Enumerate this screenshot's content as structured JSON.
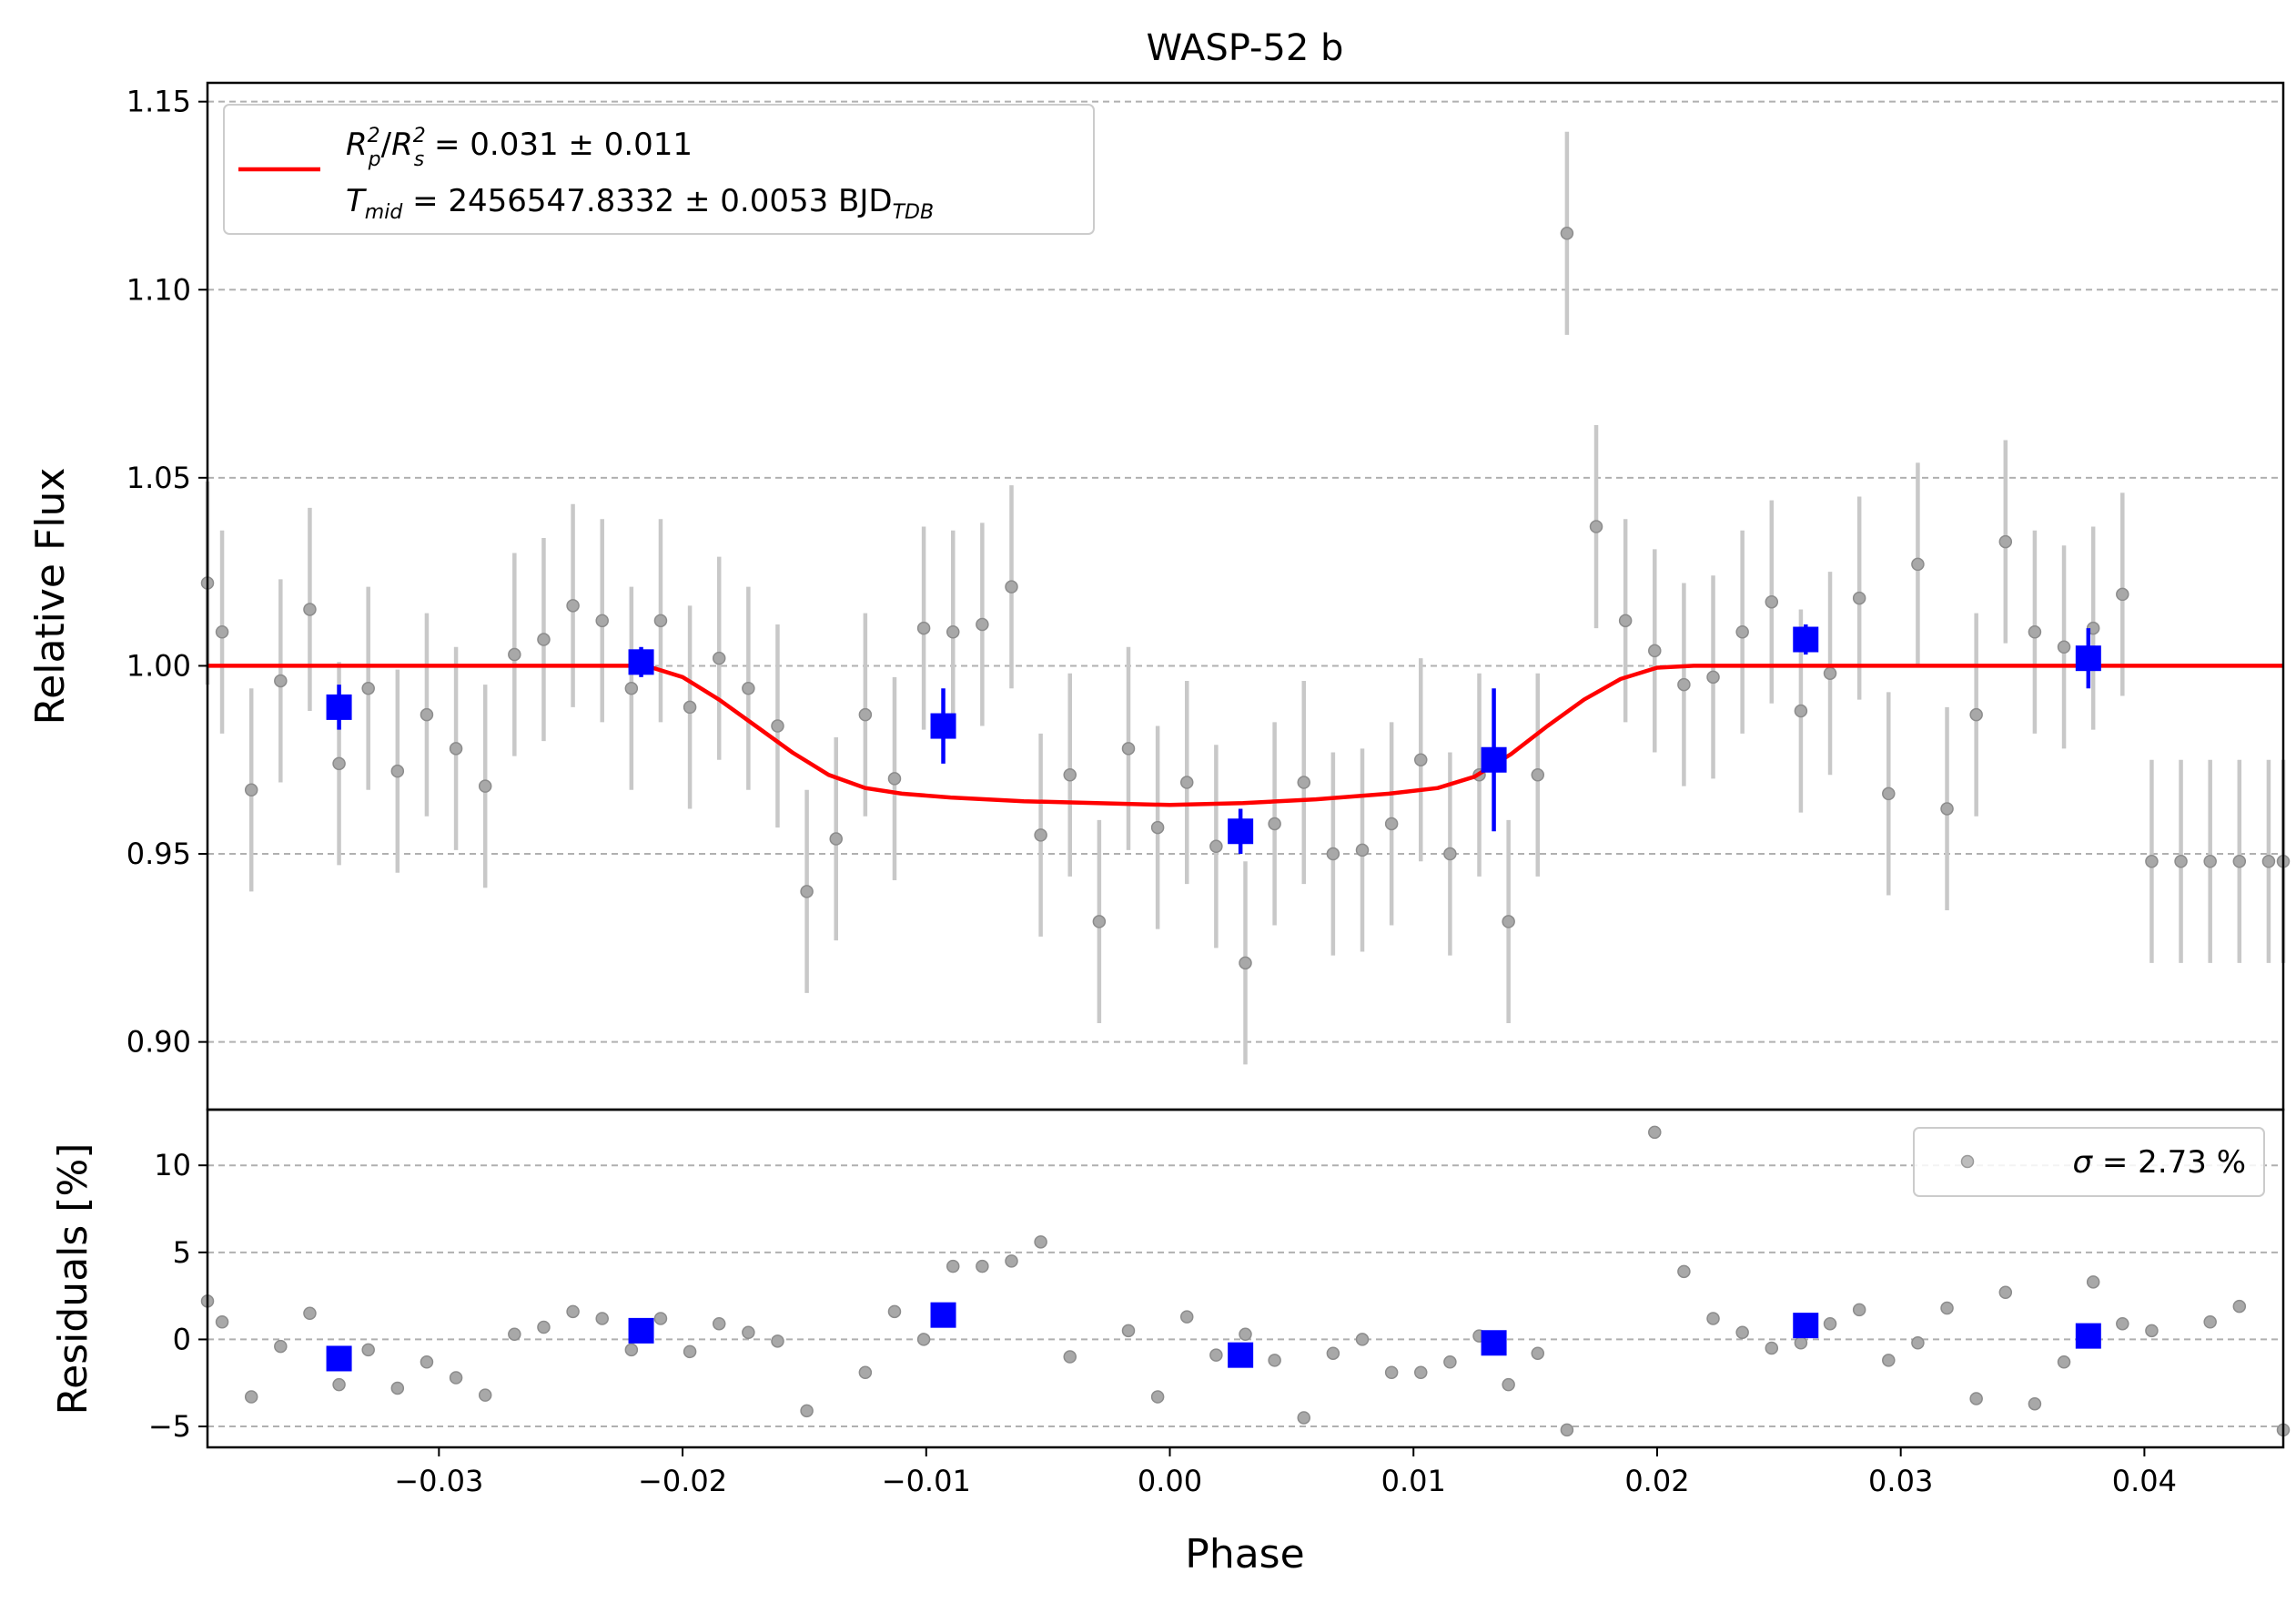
{
  "chart_data": {
    "type": "scatter",
    "title": "WASP-52 b",
    "xlabel": "Phase",
    "xlim": [
      -0.0395,
      0.0457
    ],
    "xticks": [
      -0.03,
      -0.02,
      -0.01,
      0.0,
      0.01,
      0.02,
      0.03,
      0.04
    ],
    "xtick_labels": [
      "−0.03",
      "−0.02",
      "−0.01",
      "0.00",
      "0.01",
      "0.02",
      "0.03",
      "0.04"
    ],
    "grid": "horizontal dashed",
    "top_panel": {
      "ylabel": "Relative Flux",
      "ylim": [
        0.882,
        1.155
      ],
      "yticks": [
        0.9,
        0.95,
        1.0,
        1.05,
        1.1,
        1.15
      ],
      "ytick_labels": [
        "0.90",
        "0.95",
        "1.00",
        "1.05",
        "1.10",
        "1.15"
      ],
      "legend": {
        "placement": "top-left",
        "line1": "R p²/R s² = 0.031 ± 0.011",
        "line2": "T mid = 2456547.8332 ± 0.0053 BJD TDB",
        "r_main": "R",
        "r_sub_p": "p",
        "r_sup": "2",
        "slash": "/",
        "r_sub_s": "s",
        "r_value": " = 0.031 ± 0.011",
        "t_main": "T",
        "t_sub": "mid",
        "t_value": " = 2456547.8332 ± 0.0053 BJD",
        "t_unit_sub": "TDB"
      },
      "data": {
        "name": "data",
        "color": "#808080",
        "x": [
          -0.0395,
          -0.0389,
          -0.0377,
          -0.0365,
          -0.0353,
          -0.0341,
          -0.0329,
          -0.0317,
          -0.0305,
          -0.0293,
          -0.0281,
          -0.0269,
          -0.0257,
          -0.0245,
          -0.0233,
          -0.0221,
          -0.0209,
          -0.0197,
          -0.0185,
          -0.0173,
          -0.0161,
          -0.0149,
          -0.0137,
          -0.0125,
          -0.0113,
          -0.0101,
          -0.0089,
          -0.0077,
          -0.0065,
          -0.0053,
          -0.0041,
          -0.0029,
          -0.0017,
          -0.0005,
          0.0007,
          0.0019,
          0.0031,
          0.0043,
          0.0055,
          0.0067,
          0.0079,
          0.0091,
          0.0103,
          0.0115,
          0.0127,
          0.0139,
          0.0151,
          0.0163,
          0.0175,
          0.0187,
          0.0199,
          0.0211,
          0.0223,
          0.0235,
          0.0247,
          0.0259,
          0.0271,
          0.0283,
          0.0295,
          0.0307,
          0.0319,
          0.0331,
          0.0343,
          0.0355,
          0.0367,
          0.0379,
          0.0391,
          0.0403,
          0.0415,
          0.0427,
          0.0439,
          0.0451,
          0.0457
        ],
        "y": [
          1.022,
          1.009,
          0.967,
          0.996,
          1.015,
          0.974,
          0.994,
          0.972,
          0.987,
          0.978,
          0.968,
          1.003,
          1.007,
          1.016,
          1.012,
          0.994,
          1.012,
          0.989,
          1.002,
          0.994,
          0.984,
          0.94,
          0.954,
          0.987,
          0.97,
          1.01,
          1.009,
          1.011,
          1.021,
          0.955,
          0.971,
          0.932,
          0.978,
          0.957,
          0.969,
          0.952,
          0.921,
          0.958,
          0.969,
          0.95,
          0.951,
          0.958,
          0.975,
          0.95,
          0.971,
          0.932,
          0.971,
          1.115,
          1.037,
          1.012,
          1.004,
          0.995,
          0.997,
          1.009,
          1.017,
          0.988,
          0.998,
          1.018,
          0.966,
          1.027,
          0.962,
          0.987,
          1.033,
          1.009,
          1.005,
          1.01,
          1.019,
          0.948,
          0.948,
          0.948,
          0.948,
          0.948,
          0.948
        ],
        "yerr": 0.027
      },
      "binned": {
        "name": "binned",
        "color": "#0000ff",
        "x": [
          -0.0341,
          -0.0217,
          -0.0093,
          0.0029,
          0.0133,
          0.0261,
          0.0377
        ],
        "y": [
          0.989,
          1.001,
          0.984,
          0.956,
          0.975,
          1.007,
          1.002
        ],
        "yerr": [
          0.006,
          0.004,
          0.01,
          0.006,
          0.019,
          0.004,
          0.008
        ]
      },
      "model": {
        "name": "model",
        "color": "#ff0000",
        "x": [
          -0.0395,
          -0.0215,
          -0.02,
          -0.0185,
          -0.017,
          -0.0155,
          -0.014,
          -0.0125,
          -0.011,
          -0.009,
          -0.006,
          -0.003,
          0.0,
          0.003,
          0.006,
          0.009,
          0.011,
          0.0125,
          0.014,
          0.0155,
          0.017,
          0.0185,
          0.02,
          0.0215,
          0.0457
        ],
        "y": [
          1.0,
          1.0,
          0.997,
          0.991,
          0.984,
          0.977,
          0.971,
          0.9675,
          0.966,
          0.965,
          0.964,
          0.9635,
          0.963,
          0.9635,
          0.9645,
          0.966,
          0.9675,
          0.9705,
          0.9765,
          0.984,
          0.991,
          0.9965,
          0.9995,
          1.0,
          1.0
        ]
      }
    },
    "bottom_panel": {
      "ylabel": "Residuals [%]",
      "ylim": [
        -6.2,
        13.2
      ],
      "yticks": [
        -5,
        0,
        5,
        10
      ],
      "ytick_labels": [
        "−5",
        "0",
        "5",
        "10"
      ],
      "legend": {
        "placement": "top-right",
        "sigma_symbol": "σ",
        "sigma_text": " = 2.73 %"
      },
      "data": {
        "x": [
          -0.0395,
          -0.0389,
          -0.0377,
          -0.0365,
          -0.0353,
          -0.0341,
          -0.0329,
          -0.0317,
          -0.0305,
          -0.0293,
          -0.0281,
          -0.0269,
          -0.0257,
          -0.0245,
          -0.0233,
          -0.0221,
          -0.0209,
          -0.0197,
          -0.0185,
          -0.0173,
          -0.0161,
          -0.0149,
          -0.0125,
          -0.0113,
          -0.0101,
          -0.0089,
          -0.0077,
          -0.0065,
          -0.0053,
          -0.0041,
          -0.0017,
          -0.0005,
          0.0007,
          0.0019,
          0.0031,
          0.0043,
          0.0055,
          0.0067,
          0.0079,
          0.0091,
          0.0103,
          0.0115,
          0.0127,
          0.0139,
          0.0151,
          0.0163,
          0.0199,
          0.0211,
          0.0223,
          0.0235,
          0.0247,
          0.0259,
          0.0271,
          0.0283,
          0.0295,
          0.0307,
          0.0319,
          0.0331,
          0.0343,
          0.0355,
          0.0367,
          0.0379,
          0.0391,
          0.0403,
          0.0427,
          0.0439,
          0.0457
        ],
        "y": [
          2.2,
          1.0,
          -3.3,
          -0.4,
          1.5,
          -2.6,
          -0.6,
          -2.8,
          -1.3,
          -2.2,
          -3.2,
          0.3,
          0.7,
          1.6,
          1.2,
          -0.6,
          1.2,
          -0.7,
          0.9,
          0.4,
          -0.1,
          -4.1,
          -1.9,
          1.6,
          0.0,
          4.2,
          4.2,
          4.5,
          5.6,
          -1.0,
          0.5,
          -3.3,
          1.3,
          -0.9,
          0.3,
          -1.2,
          -4.5,
          -0.8,
          0.0,
          -1.9,
          -1.9,
          -1.3,
          0.2,
          -2.6,
          -0.8,
          -5.2,
          11.9,
          3.9,
          1.2,
          0.4,
          -0.5,
          -0.2,
          0.9,
          1.7,
          -1.2,
          -0.2,
          1.8,
          -3.4,
          2.7,
          -3.7,
          -1.3,
          3.3,
          0.9,
          0.5,
          1.0,
          1.9,
          -5.2
        ]
      },
      "binned": {
        "x": [
          -0.0341,
          -0.0217,
          -0.0093,
          0.0029,
          0.0133,
          0.0261,
          0.0377
        ],
        "y": [
          -1.1,
          0.5,
          1.4,
          -0.9,
          -0.2,
          0.8,
          0.2
        ]
      }
    }
  }
}
